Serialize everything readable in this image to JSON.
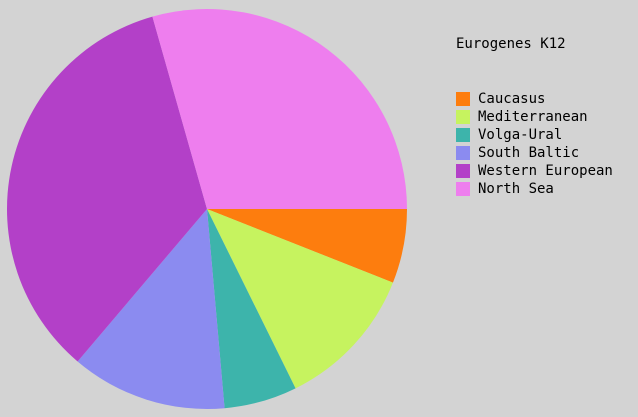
{
  "title": "Eurogenes K12",
  "chart_data": {
    "type": "pie",
    "title": "Eurogenes K12",
    "labels": [
      "Caucasus",
      "Mediterranean",
      "Volga-Ural",
      "South Baltic",
      "Western European",
      "North Sea"
    ],
    "values": [
      6.0,
      11.7,
      5.9,
      12.6,
      34.4,
      29.4
    ],
    "colors": [
      "#fd7d0e",
      "#c6f35f",
      "#3db4ab",
      "#8b8bf0",
      "#b340c8",
      "#ee7eee"
    ],
    "start_angle_deg": 0,
    "direction": "clockwise",
    "legend_position": "right",
    "background": "#d3d3d3"
  }
}
